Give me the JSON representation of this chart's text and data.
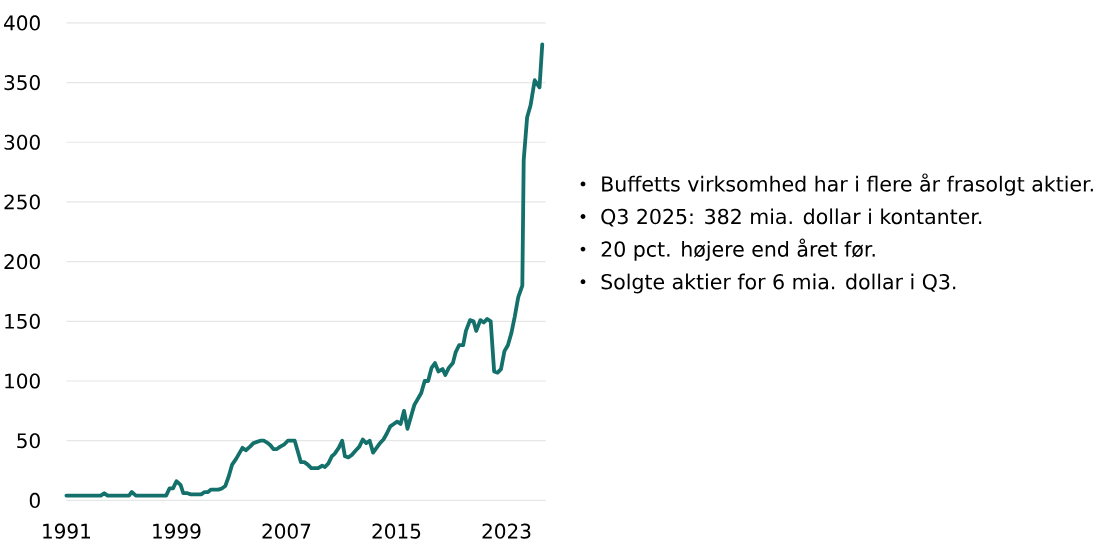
{
  "chart_data": {
    "type": "line",
    "x": [
      1991.0,
      1993.5,
      1993.75,
      1994.0,
      1995.55,
      1995.75,
      1996.05,
      1998.25,
      1998.5,
      1998.75,
      1999.0,
      1999.3,
      1999.5,
      1999.8,
      2000.05,
      2000.8,
      2001.05,
      2001.3,
      2001.5,
      2002.05,
      2002.3,
      2002.55,
      2002.8,
      2003.05,
      2003.35,
      2003.6,
      2003.8,
      2004.05,
      2004.35,
      2004.6,
      2004.85,
      2005.1,
      2005.35,
      2005.65,
      2005.85,
      2006.05,
      2006.3,
      2006.55,
      2006.85,
      2007.1,
      2007.6,
      2007.8,
      2008.05,
      2008.3,
      2008.55,
      2008.8,
      2009.05,
      2009.3,
      2009.6,
      2009.8,
      2010.05,
      2010.3,
      2010.5,
      2010.8,
      2011.05,
      2011.25,
      2011.5,
      2011.75,
      2012.05,
      2012.3,
      2012.55,
      2012.8,
      2013.05,
      2013.3,
      2013.55,
      2013.8,
      2014.05,
      2014.3,
      2014.55,
      2014.8,
      2015.05,
      2015.3,
      2015.55,
      2015.8,
      2016.05,
      2016.3,
      2016.55,
      2016.8,
      2017.05,
      2017.3,
      2017.55,
      2017.8,
      2018.05,
      2018.35,
      2018.55,
      2018.8,
      2019.1,
      2019.3,
      2019.55,
      2019.85,
      2020.05,
      2020.35,
      2020.6,
      2020.8,
      2021.1,
      2021.35,
      2021.6,
      2021.85,
      2022.1,
      2022.35,
      2022.6,
      2022.85,
      2023.1,
      2023.35,
      2023.6,
      2023.85,
      2024.15,
      2024.25,
      2024.5,
      2024.75,
      2025.05,
      2025.4,
      2025.6
    ],
    "values": [
      4,
      4,
      6,
      4,
      4,
      7,
      4,
      4,
      10,
      10,
      16,
      13,
      6,
      6,
      5,
      5,
      7,
      7,
      9,
      9,
      10,
      12,
      20,
      30,
      35,
      40,
      44,
      42,
      45,
      48,
      49,
      50,
      50,
      48,
      46,
      43,
      43,
      45,
      47,
      50,
      50,
      42,
      32,
      32,
      30,
      27,
      27,
      27,
      29,
      28,
      31,
      37,
      39,
      44,
      50,
      37,
      36,
      38,
      42,
      45,
      51,
      48,
      50,
      40,
      44,
      48,
      51,
      56,
      62,
      64,
      66,
      64,
      75,
      60,
      70,
      80,
      85,
      90,
      100,
      100,
      111,
      115,
      108,
      110,
      105,
      111,
      115,
      124,
      130,
      130,
      142,
      151,
      150,
      142,
      151,
      149,
      152,
      150,
      108,
      107,
      110,
      125,
      130,
      140,
      154,
      170,
      180,
      285,
      321,
      331,
      352,
      346,
      382
    ],
    "color": "#13706a",
    "line_style": "solid",
    "xlim": [
      1991,
      2025.85
    ],
    "xticks": [
      1991,
      1999,
      2007,
      2015,
      2023
    ],
    "ylim": [
      0,
      400
    ],
    "yticks": [
      0,
      50,
      100,
      150,
      200,
      250,
      300,
      350,
      400
    ],
    "grid": "y",
    "annotations": [
      "Buffetts virksomhed har i flere år frasolgt aktier.",
      "Q3 2025: 382 mia. dollar i kontanter.",
      "20 pct. højere end året før.",
      "Solgte aktier for 6 mia. dollar i Q3."
    ]
  }
}
